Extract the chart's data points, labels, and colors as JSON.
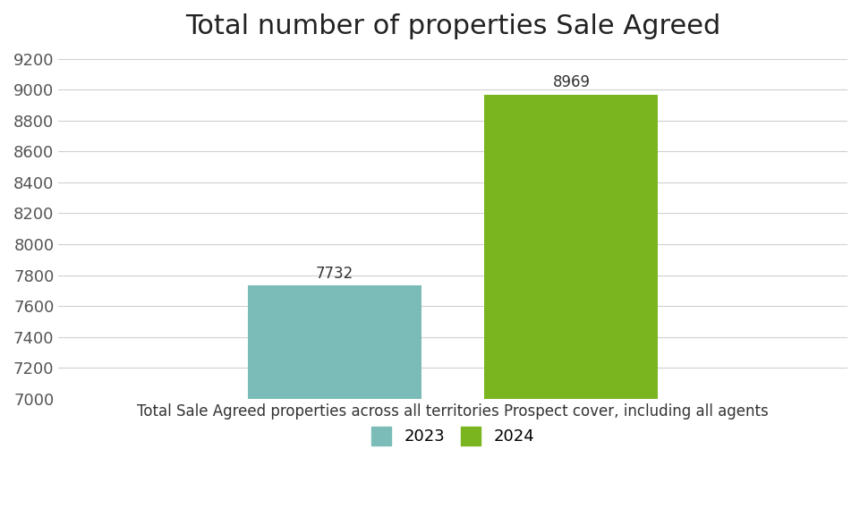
{
  "title": "Total number of properties Sale Agreed",
  "xlabel_combined": "Total Sale Agreed properties across all territories Prospect cover, including all agents",
  "bar_labels": [
    "Total Sale Agreed\nproperties across\nall territories",
    "Prospect cover,\nincluding all agents"
  ],
  "values_2023": 7732,
  "values_2024": 8969,
  "bar_color_2023": "#7bbcb8",
  "bar_color_2024": "#7ab520",
  "ylim": [
    7000,
    9200
  ],
  "yticks": [
    7000,
    7200,
    7400,
    7600,
    7800,
    8000,
    8200,
    8400,
    8600,
    8800,
    9000,
    9200
  ],
  "legend_labels": [
    "2023",
    "2024"
  ],
  "background_color": "#ffffff",
  "title_fontsize": 22,
  "tick_fontsize": 13,
  "label_fontsize": 12,
  "annotation_fontsize": 12
}
